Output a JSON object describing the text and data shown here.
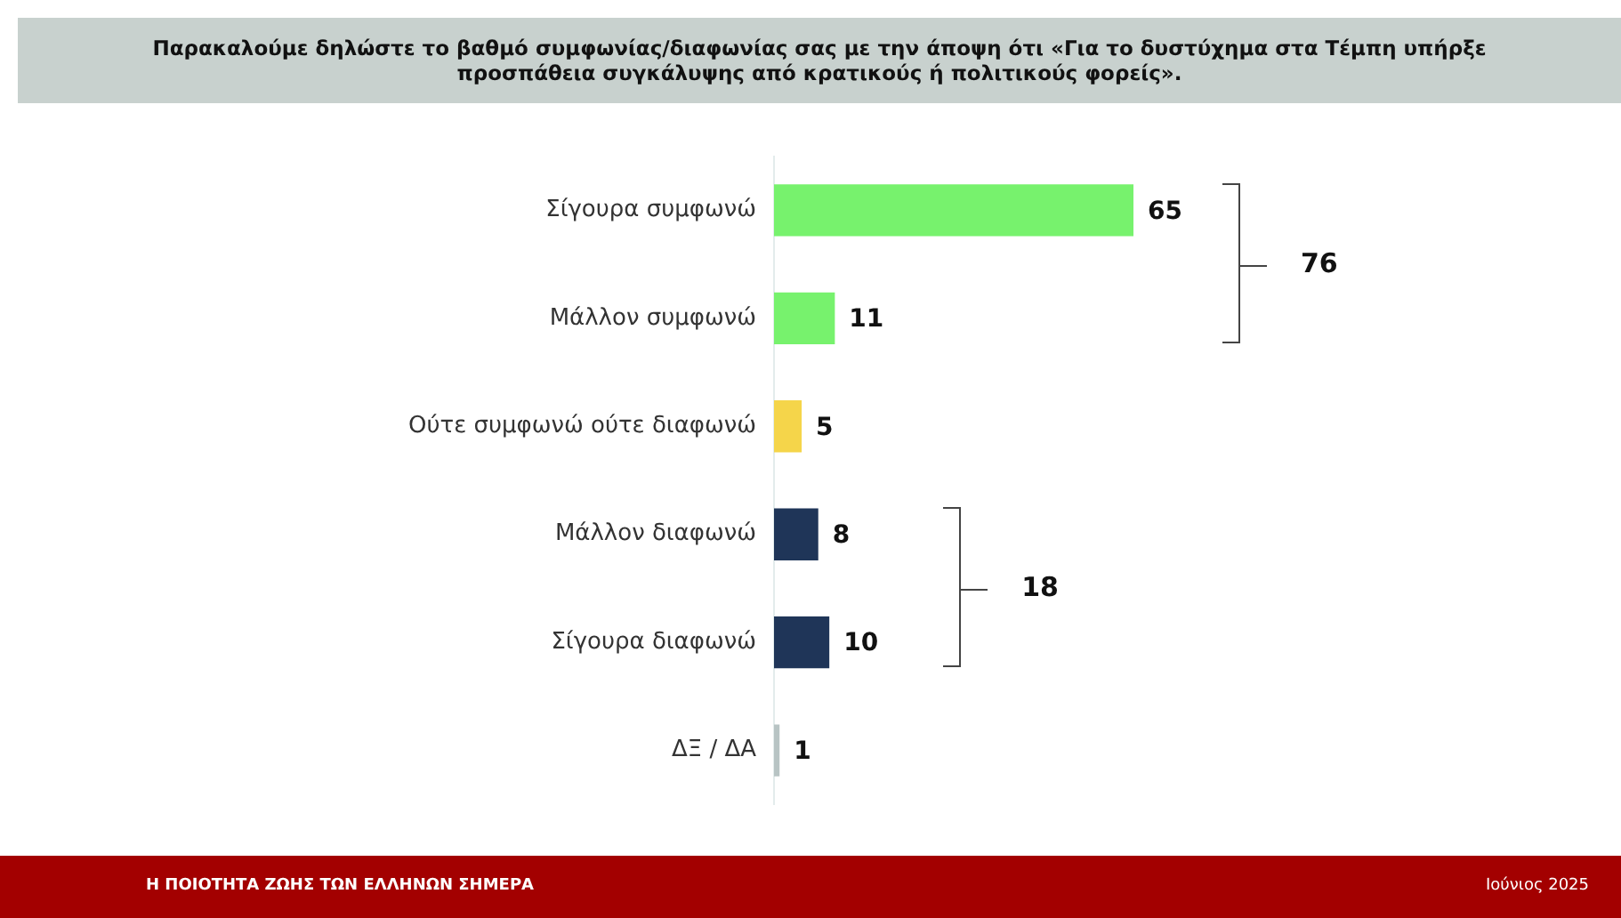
{
  "chart_data": {
    "type": "bar",
    "orientation": "horizontal",
    "title": "Παρακαλούμε δηλώστε το βαθμό συμφωνίας/διαφωνίας σας με την άποψη ότι «Για το δυστύχημα στα Τέμπη υπήρξε προσπάθεια συγκάλυψης από κρατικούς ή πολιτικούς φορείς».",
    "categories": [
      "Σίγουρα συμφωνώ",
      "Μάλλον συμφωνώ",
      "Ούτε συμφωνώ ούτε διαφωνώ",
      "Μάλλον διαφωνώ",
      "Σίγουρα διαφωνώ",
      "ΔΞ / ΔΑ"
    ],
    "values": [
      65,
      11,
      5,
      8,
      10,
      1
    ],
    "colors": [
      "#77f26d",
      "#77f26d",
      "#f5d54a",
      "#1f3558",
      "#1f3558",
      "#b8c4c4"
    ],
    "data_labels": true,
    "annotations": [
      "76",
      "18",
      "Η ΠΟΙΟΤΗΤΑ ΖΩΗΣ ΤΩΝ ΕΛΛΗΝΩΝ ΣΗΜΕΡΑ",
      "Ιούνιος 2025"
    ]
  }
}
